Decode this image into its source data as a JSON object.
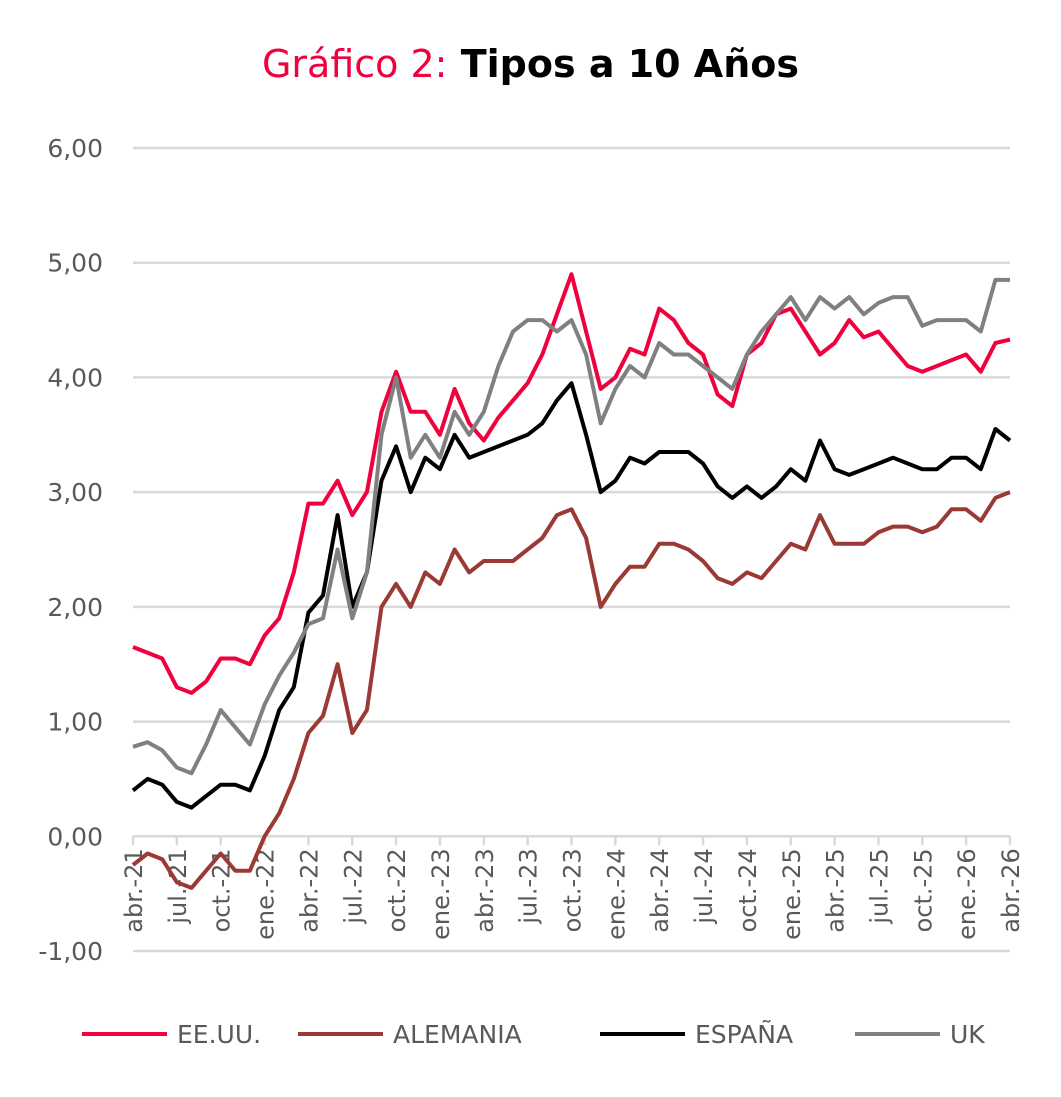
{
  "chart_data": {
    "type": "line",
    "title_lead": "Gráfico 2:",
    "title_rest": "Tipos a 10 Años",
    "xlabel": "",
    "ylabel": "",
    "ylim": [
      -1,
      6
    ],
    "yticks": [
      6,
      5,
      4,
      3,
      2,
      1,
      0,
      -1
    ],
    "ytick_labels": [
      "6,00",
      "5,00",
      "4,00",
      "3,00",
      "2,00",
      "1,00",
      "0,00",
      "-1,00"
    ],
    "grid": true,
    "legend_position": "bottom",
    "x_tick_labels": [
      "abr.-21",
      "jul.-21",
      "oct.-21",
      "ene.-22",
      "abr.-22",
      "jul.-22",
      "oct.-22",
      "ene.-23",
      "abr.-23",
      "jul.-23",
      "oct.-23",
      "ene.-24",
      "abr.-24",
      "jul.-24",
      "oct.-24",
      "ene.-25",
      "abr.-25",
      "jul.-25",
      "oct.-25",
      "ene.-26",
      "abr.-26"
    ],
    "x_frequency": "monthly, abr.-21 to abr.-26",
    "series": [
      {
        "name": "EE.UU.",
        "color": "#f0003c",
        "values": [
          1.65,
          1.6,
          1.55,
          1.3,
          1.25,
          1.35,
          1.55,
          1.55,
          1.5,
          1.75,
          1.9,
          2.3,
          2.9,
          2.9,
          3.1,
          2.8,
          3.0,
          3.7,
          4.05,
          3.7,
          3.7,
          3.5,
          3.9,
          3.6,
          3.45,
          3.65,
          3.8,
          3.95,
          4.2,
          4.55,
          4.9,
          4.4,
          3.9,
          4.0,
          4.25,
          4.2,
          4.6,
          4.5,
          4.3,
          4.2,
          3.85,
          3.75,
          4.2,
          4.3,
          4.55,
          4.6,
          4.4,
          4.2,
          4.3,
          4.5,
          4.35,
          4.4,
          4.25,
          4.1,
          4.05,
          4.1,
          4.15,
          4.2,
          4.05,
          4.3,
          4.33
        ]
      },
      {
        "name": "ALEMANIA",
        "color": "#9b3a34",
        "values": [
          -0.25,
          -0.15,
          -0.2,
          -0.4,
          -0.45,
          -0.3,
          -0.15,
          -0.3,
          -0.3,
          0.0,
          0.2,
          0.5,
          0.9,
          1.05,
          1.5,
          0.9,
          1.1,
          2.0,
          2.2,
          2.0,
          2.3,
          2.2,
          2.5,
          2.3,
          2.4,
          2.4,
          2.4,
          2.5,
          2.6,
          2.8,
          2.85,
          2.6,
          2.0,
          2.2,
          2.35,
          2.35,
          2.55,
          2.55,
          2.5,
          2.4,
          2.25,
          2.2,
          2.3,
          2.25,
          2.4,
          2.55,
          2.5,
          2.8,
          2.55,
          2.55,
          2.55,
          2.65,
          2.7,
          2.7,
          2.65,
          2.7,
          2.85,
          2.85,
          2.75,
          2.95,
          3.0
        ]
      },
      {
        "name": "ESPAÑA",
        "color": "#000000",
        "values": [
          0.4,
          0.5,
          0.45,
          0.3,
          0.25,
          0.35,
          0.45,
          0.45,
          0.4,
          0.7,
          1.1,
          1.3,
          1.95,
          2.1,
          2.8,
          2.0,
          2.3,
          3.1,
          3.4,
          3.0,
          3.3,
          3.2,
          3.5,
          3.3,
          3.35,
          3.4,
          3.45,
          3.5,
          3.6,
          3.8,
          3.95,
          3.5,
          3.0,
          3.1,
          3.3,
          3.25,
          3.35,
          3.35,
          3.35,
          3.25,
          3.05,
          2.95,
          3.05,
          2.95,
          3.05,
          3.2,
          3.1,
          3.45,
          3.2,
          3.15,
          3.2,
          3.25,
          3.3,
          3.25,
          3.2,
          3.2,
          3.3,
          3.3,
          3.2,
          3.55,
          3.45
        ]
      },
      {
        "name": "UK",
        "color": "#808080",
        "values": [
          0.78,
          0.82,
          0.75,
          0.6,
          0.55,
          0.8,
          1.1,
          0.95,
          0.8,
          1.15,
          1.4,
          1.6,
          1.85,
          1.9,
          2.5,
          1.9,
          2.3,
          3.5,
          4.0,
          3.3,
          3.5,
          3.3,
          3.7,
          3.5,
          3.7,
          4.1,
          4.4,
          4.5,
          4.5,
          4.4,
          4.5,
          4.2,
          3.6,
          3.9,
          4.1,
          4.0,
          4.3,
          4.2,
          4.2,
          4.1,
          4.0,
          3.9,
          4.2,
          4.4,
          4.55,
          4.7,
          4.5,
          4.7,
          4.6,
          4.7,
          4.55,
          4.65,
          4.7,
          4.7,
          4.45,
          4.5,
          4.5,
          4.5,
          4.4,
          4.85,
          4.85
        ]
      }
    ]
  }
}
